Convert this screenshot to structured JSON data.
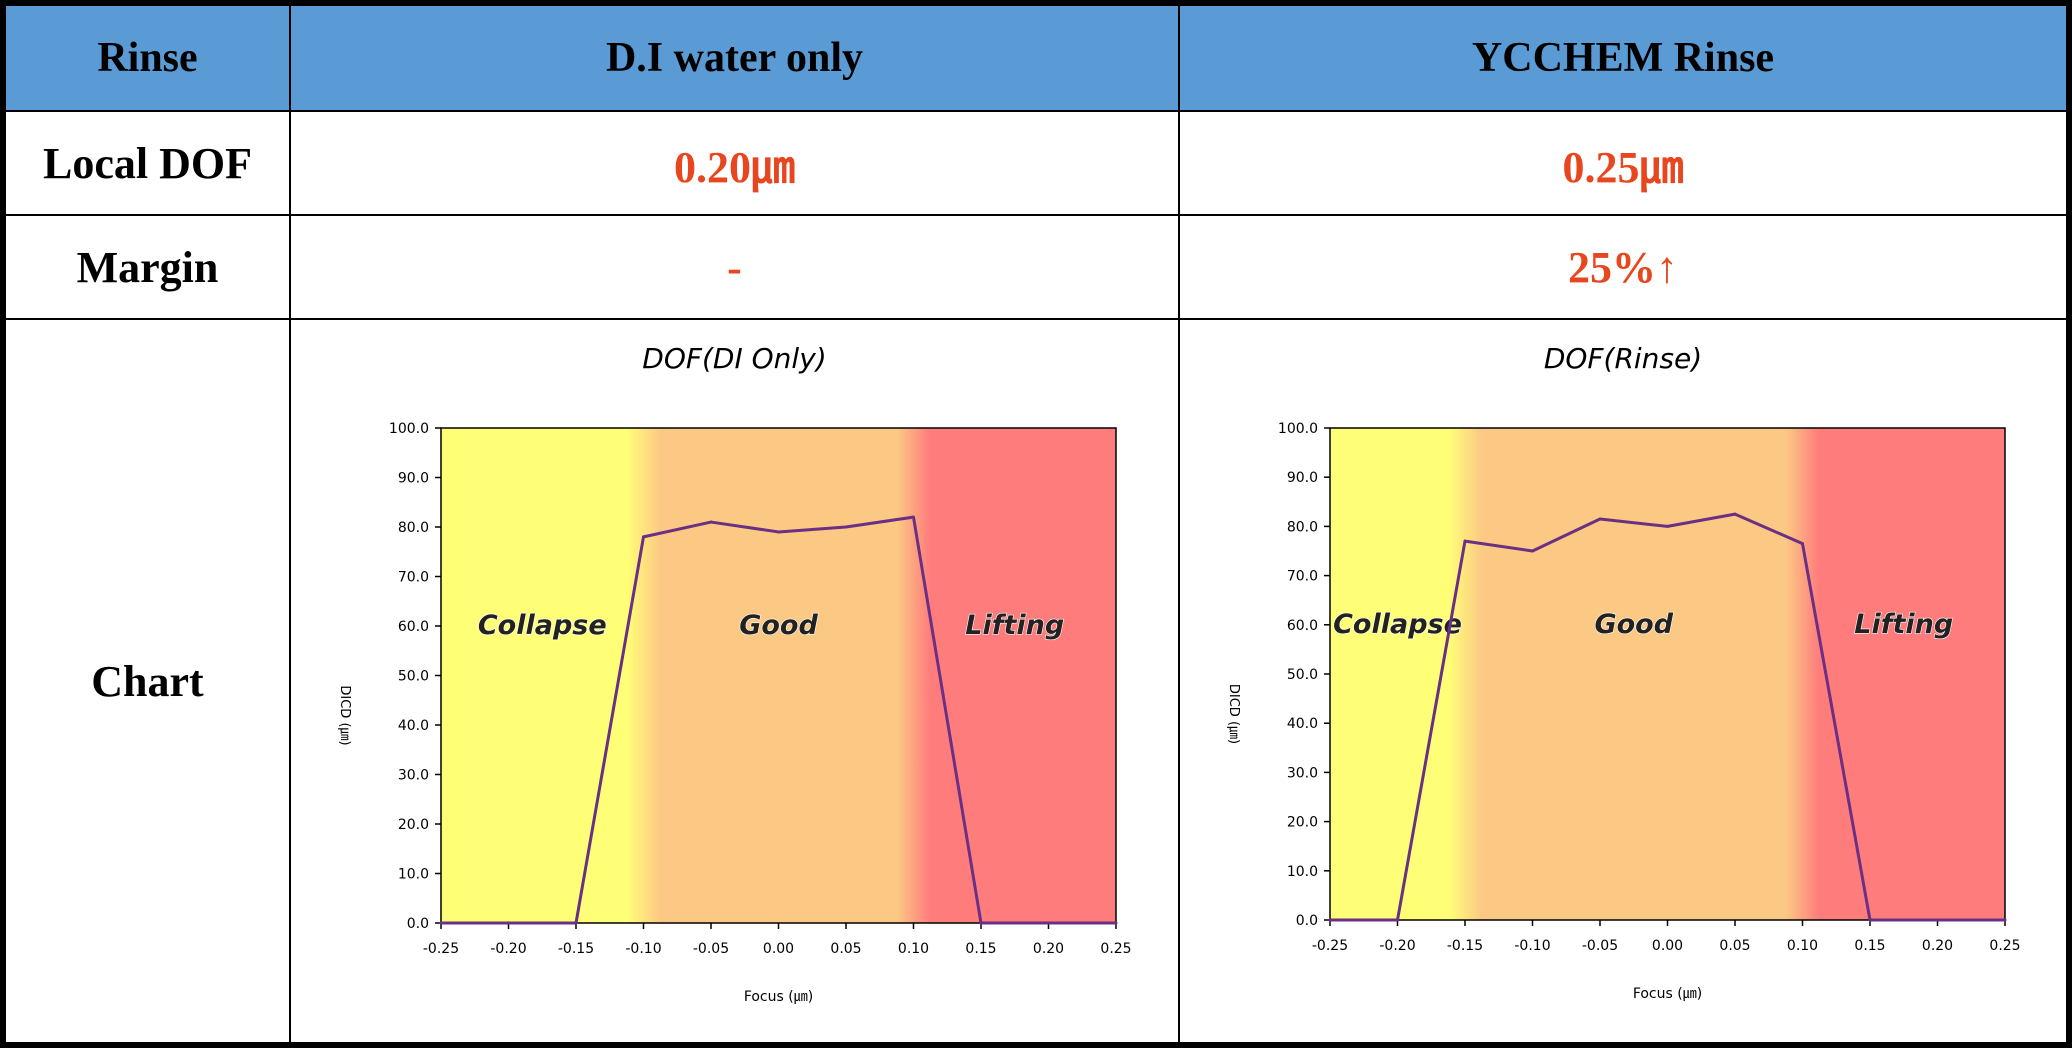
{
  "header": {
    "col0": "Rinse",
    "col1": "D.I  water only",
    "col2": "YCCHEM Rinse"
  },
  "rows": {
    "local_dof": {
      "label": "Local DOF",
      "di": "0.20㎛",
      "rinse": "0.25㎛"
    },
    "margin": {
      "label": "Margin",
      "di": "-",
      "rinse": "25%↑"
    },
    "chart": {
      "label": "Chart"
    }
  },
  "colors": {
    "header_bg": "#5b9bd5",
    "value_red": "#e8461e",
    "collapse": "#ffff77",
    "good": "#fbc984",
    "lifting": "#ff7c7c",
    "line": "#6b2f83"
  },
  "chart_data": [
    {
      "type": "line",
      "title": "DOF(DI Only)",
      "xlabel": "Focus (㎛)",
      "ylabel": "DICD (㎛)",
      "xlim": [
        -0.25,
        0.25
      ],
      "ylim": [
        0,
        100
      ],
      "x_ticks": [
        "-0.25",
        "-0.20",
        "-0.15",
        "-0.10",
        "-0.05",
        "0.00",
        "0.05",
        "0.10",
        "0.15",
        "0.20",
        "0.25"
      ],
      "y_ticks": [
        "0.0",
        "10.0",
        "20.0",
        "30.0",
        "40.0",
        "50.0",
        "60.0",
        "70.0",
        "80.0",
        "90.0",
        "100.0"
      ],
      "x": [
        -0.25,
        -0.2,
        -0.15,
        -0.1,
        -0.05,
        0.0,
        0.05,
        0.1,
        0.15,
        0.2,
        0.25
      ],
      "y": [
        0,
        0,
        0,
        78,
        81,
        79,
        80,
        82,
        0,
        0,
        0
      ],
      "regions": [
        {
          "label": "Collapse",
          "from": -0.25,
          "to": -0.1,
          "color": "#ffff77"
        },
        {
          "label": "Good",
          "from": -0.1,
          "to": 0.1,
          "color": "#fbc984"
        },
        {
          "label": "Lifting",
          "from": 0.1,
          "to": 0.25,
          "color": "#ff7c7c"
        }
      ]
    },
    {
      "type": "line",
      "title": "DOF(Rinse)",
      "xlabel": "Focus (㎛)",
      "ylabel": "DICD (㎛)",
      "xlim": [
        -0.25,
        0.25
      ],
      "ylim": [
        0,
        100
      ],
      "x_ticks": [
        "-0.25",
        "-0.20",
        "-0.15",
        "-0.10",
        "-0.05",
        "0.00",
        "0.05",
        "0.10",
        "0.15",
        "0.20",
        "0.25"
      ],
      "y_ticks": [
        "0.0",
        "10.0",
        "20.0",
        "30.0",
        "40.0",
        "50.0",
        "60.0",
        "70.0",
        "80.0",
        "90.0",
        "100.0"
      ],
      "x": [
        -0.25,
        -0.2,
        -0.15,
        -0.1,
        -0.05,
        0.0,
        0.05,
        0.1,
        0.15,
        0.2,
        0.25
      ],
      "y": [
        0,
        0,
        77,
        75,
        81.5,
        80,
        82.5,
        76.5,
        0,
        0,
        0
      ],
      "regions": [
        {
          "label": "Collapse",
          "from": -0.25,
          "to": -0.15,
          "color": "#ffff77"
        },
        {
          "label": "Good",
          "from": -0.15,
          "to": 0.1,
          "color": "#fbc984"
        },
        {
          "label": "Lifting",
          "from": 0.1,
          "to": 0.25,
          "color": "#ff7c7c"
        }
      ]
    }
  ]
}
